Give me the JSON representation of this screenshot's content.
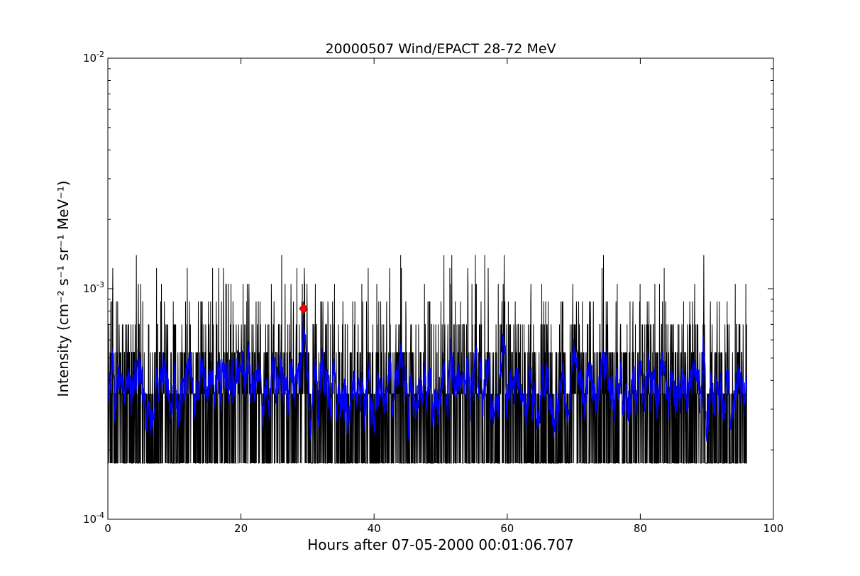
{
  "chart_data": {
    "type": "line",
    "title": "20000507 Wind/EPACT 28-72 MeV",
    "xlabel": "Hours after 07-05-2000 00:01:06.707",
    "ylabel": "Intensity (cm⁻² s⁻¹ sr⁻¹ MeV⁻¹)",
    "xlim": [
      0,
      100
    ],
    "ylim": [
      0.0001,
      0.01
    ],
    "yscale": "log",
    "grid": false,
    "x_ticks": [
      {
        "value": 0,
        "label": "0"
      },
      {
        "value": 20,
        "label": "20"
      },
      {
        "value": 40,
        "label": "40"
      },
      {
        "value": 60,
        "label": "60"
      },
      {
        "value": 80,
        "label": "80"
      },
      {
        "value": 100,
        "label": "100"
      }
    ],
    "y_ticks": [
      {
        "value": 0.0001,
        "base": "10",
        "exp": "-4"
      },
      {
        "value": 0.001,
        "base": "10",
        "exp": "-3"
      },
      {
        "value": 0.01,
        "base": "10",
        "exp": "-2"
      }
    ],
    "series": [
      {
        "color": "#000000",
        "x_range": [
          0,
          96
        ],
        "levels": [
          0.000175,
          0.00035,
          0.00053,
          0.0007,
          0.00088,
          0.00105,
          0.00123,
          0.0014
        ],
        "level_weights": [
          0.42,
          0.28,
          0.16,
          0.08,
          0.035,
          0.015,
          0.007,
          0.003
        ]
      },
      {
        "color": "#0000ff",
        "x_range": [
          0,
          96
        ],
        "approx_mean": 0.00038,
        "approx_range": [
          0.000175,
          0.00078
        ]
      }
    ],
    "marker": {
      "x": 29.4,
      "y": 0.00082,
      "color": "#ff0000",
      "shape": "diamond"
    }
  }
}
